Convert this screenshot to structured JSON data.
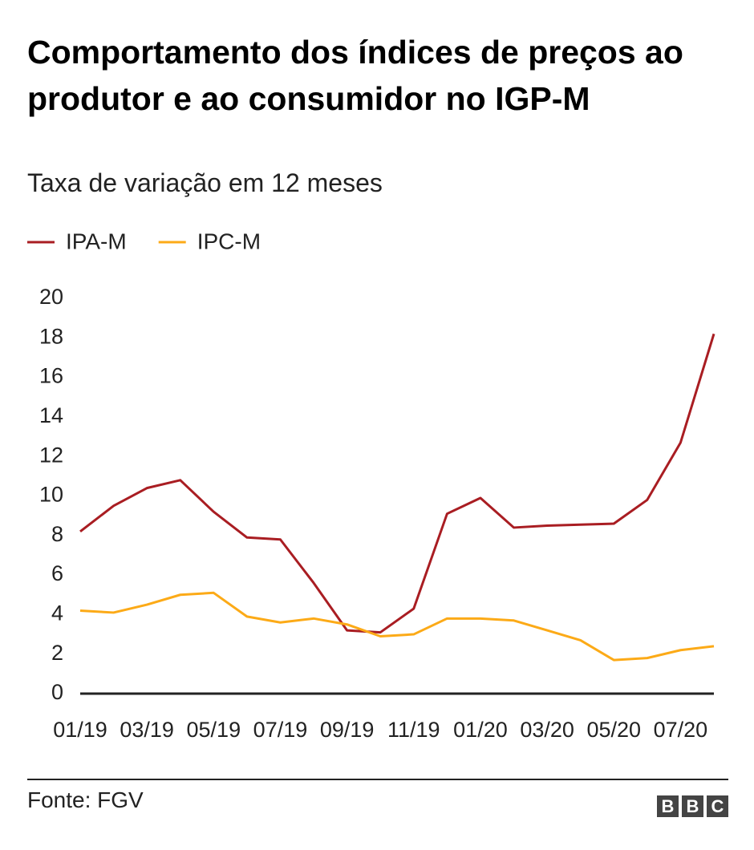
{
  "chart_data": {
    "type": "line",
    "title": "Comportamento dos índices de preços ao produtor e ao consumidor no IGP-M",
    "subtitle": "Taxa de variação em 12 meses",
    "categories": [
      "01/19",
      null,
      "03/19",
      null,
      "05/19",
      null,
      "07/19",
      null,
      "09/19",
      null,
      "11/19",
      null,
      "01/20",
      null,
      "03/20",
      null,
      "05/20",
      null,
      "07/20",
      null
    ],
    "series": [
      {
        "name": "IPA-M",
        "color": "#a91d22",
        "values": [
          8.2,
          9.5,
          10.4,
          10.8,
          9.2,
          7.9,
          7.8,
          5.6,
          3.2,
          3.1,
          4.3,
          9.1,
          9.9,
          8.4,
          8.5,
          8.55,
          8.6,
          9.8,
          12.7,
          18.2
        ]
      },
      {
        "name": "IPC-M",
        "color": "#fcaa17",
        "values": [
          4.2,
          4.1,
          4.5,
          5.0,
          5.1,
          3.9,
          3.6,
          3.8,
          3.5,
          2.9,
          3.0,
          3.8,
          3.8,
          3.7,
          3.2,
          2.7,
          1.7,
          1.8,
          2.2,
          2.4
        ]
      }
    ],
    "ylim": [
      0,
      20
    ],
    "yticks": [
      0,
      2,
      4,
      6,
      8,
      10,
      12,
      14,
      16,
      18,
      20
    ],
    "grid": false,
    "source": "Fonte: FGV",
    "logo": [
      "B",
      "B",
      "C"
    ]
  }
}
